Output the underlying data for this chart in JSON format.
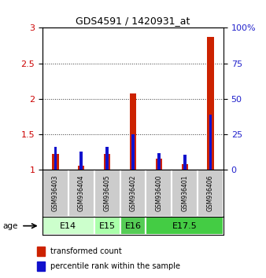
{
  "title": "GDS4591 / 1420931_at",
  "samples": [
    "GSM936403",
    "GSM936404",
    "GSM936405",
    "GSM936402",
    "GSM936400",
    "GSM936401",
    "GSM936406"
  ],
  "red_values": [
    1.22,
    1.05,
    1.22,
    2.07,
    1.15,
    1.08,
    2.87
  ],
  "blue_values": [
    1.32,
    1.25,
    1.32,
    1.5,
    1.23,
    1.21,
    1.77
  ],
  "age_groups": [
    {
      "label": "E14",
      "start": 0,
      "end": 2,
      "color": "#ccffcc"
    },
    {
      "label": "E15",
      "start": 2,
      "end": 3,
      "color": "#aaffaa"
    },
    {
      "label": "E16",
      "start": 3,
      "end": 4,
      "color": "#55cc55"
    },
    {
      "label": "E17.5",
      "start": 4,
      "end": 7,
      "color": "#44cc44"
    }
  ],
  "ylim_left": [
    1.0,
    3.0
  ],
  "ylim_right": [
    0,
    100
  ],
  "yticks_left": [
    1.0,
    1.5,
    2.0,
    2.5,
    3.0
  ],
  "yticks_right": [
    0,
    25,
    50,
    75,
    100
  ],
  "left_tick_labels": [
    "1",
    "1.5",
    "2",
    "2.5",
    "3"
  ],
  "right_tick_labels": [
    "0",
    "25",
    "50",
    "75",
    "100%"
  ],
  "ylabel_left_color": "#cc0000",
  "ylabel_right_color": "#2222cc",
  "red_bar_width": 0.25,
  "blue_bar_width": 0.12,
  "red_color": "#cc2200",
  "blue_color": "#1111cc",
  "plot_bg_color": "#ffffff",
  "legend_red": "transformed count",
  "legend_blue": "percentile rank within the sample",
  "age_label": "age",
  "sample_box_color": "#cccccc",
  "grid_linestyle": "dotted",
  "grid_color": "#333333",
  "figwidth": 3.38,
  "figheight": 3.54,
  "dpi": 100
}
